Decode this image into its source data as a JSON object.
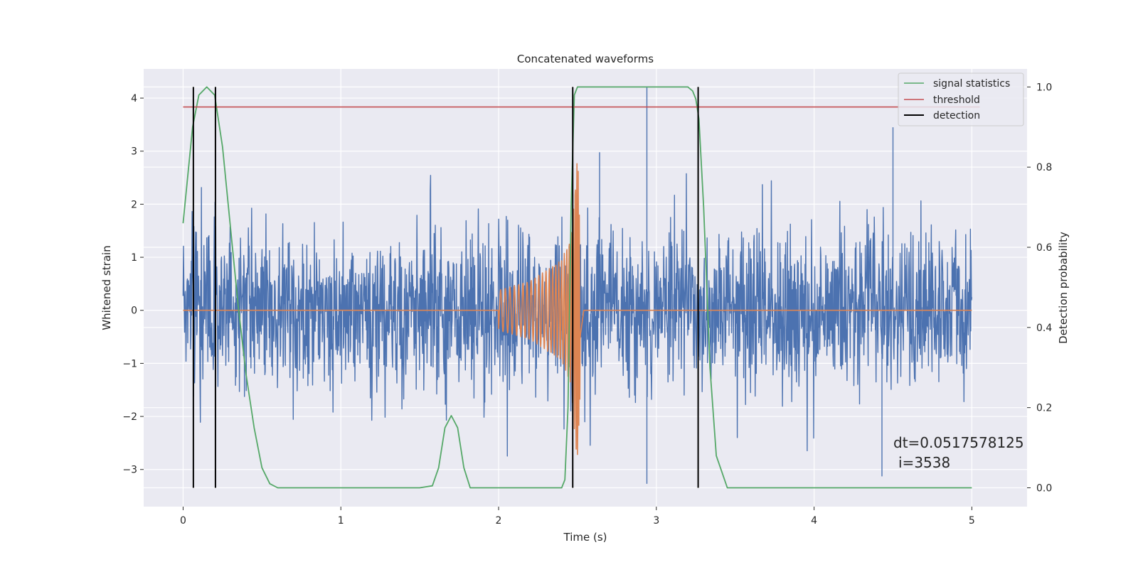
{
  "chart_data": {
    "type": "line",
    "title": "Concatenated waveforms",
    "xlabel": "Time (s)",
    "ylabel": "Whitened strain",
    "y2label": "Detection probability",
    "xlim": [
      -0.25,
      5.35
    ],
    "ylim": [
      -3.7,
      4.55
    ],
    "y2lim": [
      -0.047,
      1.045
    ],
    "x_ticks": [
      0,
      1,
      2,
      3,
      4,
      5
    ],
    "y_ticks": [
      -3,
      -2,
      -1,
      0,
      1,
      2,
      3,
      4
    ],
    "y2_ticks": [
      0.0,
      0.2,
      0.4,
      0.6,
      0.8,
      1.0
    ],
    "x_tick_labels": [
      "0",
      "1",
      "2",
      "3",
      "4",
      "5"
    ],
    "y_tick_labels": [
      "−3",
      "−2",
      "−1",
      "0",
      "1",
      "2",
      "3",
      "4"
    ],
    "y2_tick_labels": [
      "0.0",
      "0.2",
      "0.4",
      "0.6",
      "0.8",
      "1.0"
    ],
    "grid": true,
    "legend_position": "top-right",
    "colors": {
      "background": "#eaeaf2",
      "grid": "#ffffff",
      "strain": "#4c72b0",
      "template": "#dd8452",
      "statistics": "#55a868",
      "threshold": "#c44e52",
      "detection": "#000000"
    },
    "series": [
      {
        "name": "",
        "axis": "left",
        "kind": "whitened-noise",
        "x_range": [
          0,
          5
        ],
        "n_points": 2200,
        "amplitude_range": [
          -3.3,
          4.2
        ],
        "notable_peaks": [
          [
            2.94,
            4.2
          ],
          [
            4.5,
            3.45
          ],
          [
            2.64,
            2.98
          ],
          [
            2.94,
            -3.27
          ],
          [
            4.43,
            -3.13
          ]
        ]
      },
      {
        "name": "",
        "axis": "left",
        "kind": "chirp",
        "x": [
          0,
          2.0,
          2.2,
          2.4,
          2.46,
          2.5,
          2.52,
          2.54,
          5.0
        ],
        "envelope": [
          0,
          0.38,
          0.55,
          0.95,
          1.4,
          3.1,
          1.2,
          0,
          0
        ],
        "merger_time": 2.5
      },
      {
        "name": "signal statistics",
        "axis": "right",
        "x": [
          0,
          0.03,
          0.06,
          0.1,
          0.15,
          0.2,
          0.25,
          0.3,
          0.35,
          0.4,
          0.45,
          0.5,
          0.55,
          0.6,
          1.5,
          1.58,
          1.62,
          1.66,
          1.7,
          1.74,
          1.78,
          1.82,
          2.4,
          2.42,
          2.44,
          2.46,
          2.48,
          2.5,
          2.55,
          3.2,
          3.23,
          3.25,
          3.27,
          3.3,
          3.34,
          3.38,
          3.45,
          5.0
        ],
        "values": [
          0.66,
          0.78,
          0.9,
          0.98,
          1.0,
          0.98,
          0.85,
          0.65,
          0.45,
          0.28,
          0.15,
          0.05,
          0.01,
          0.0,
          0.0,
          0.005,
          0.05,
          0.15,
          0.18,
          0.15,
          0.05,
          0.0,
          0.0,
          0.02,
          0.2,
          0.7,
          0.98,
          1.0,
          1.0,
          1.0,
          0.99,
          0.97,
          0.92,
          0.7,
          0.3,
          0.08,
          0.0,
          0.0
        ]
      },
      {
        "name": "threshold",
        "axis": "right",
        "x": [
          0,
          5.05
        ],
        "values": [
          0.95,
          0.95
        ]
      },
      {
        "name": "detection",
        "axis": "right",
        "kind": "vertical-lines",
        "x": [
          0.065,
          0.205,
          2.47,
          3.265
        ],
        "span": [
          0.0,
          1.0
        ]
      }
    ],
    "annotations": [
      "dt=0.0517578125",
      "i=3538"
    ]
  }
}
